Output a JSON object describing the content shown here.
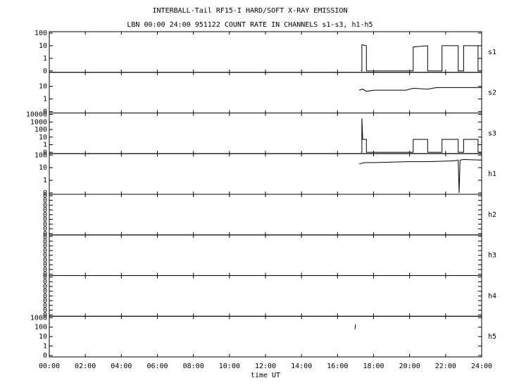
{
  "chart_data": {
    "type": "line",
    "title": "INTERBALL-Tail RF15-I HARD/SOFT X-RAY EMISSION",
    "subtitle": "LBN 00:00 24:00 951122  COUNT RATE IN CHANNELS s1-s3, h1-h5",
    "x_label": "time UT",
    "xlim": [
      0,
      24
    ],
    "xticks": [
      {
        "value": 0,
        "label": "00:00"
      },
      {
        "value": 2,
        "label": "02:00"
      },
      {
        "value": 4,
        "label": "04:00"
      },
      {
        "value": 6,
        "label": "06:00"
      },
      {
        "value": 8,
        "label": "08:00"
      },
      {
        "value": 10,
        "label": "10:00"
      },
      {
        "value": 12,
        "label": "12:00"
      },
      {
        "value": 14,
        "label": "14:00"
      },
      {
        "value": 16,
        "label": "16:00"
      },
      {
        "value": 18,
        "label": "18:00"
      },
      {
        "value": 20,
        "label": "20:00"
      },
      {
        "value": 22,
        "label": "22:00"
      },
      {
        "value": 24,
        "label": "24:00"
      }
    ],
    "color": "#000000",
    "panels": [
      {
        "label": "s1",
        "yscale": "log",
        "ylim": [
          0,
          100
        ],
        "yticks": [
          0,
          1,
          10,
          100
        ],
        "x": [
          17.3,
          17.35,
          17.35,
          17.6,
          17.6,
          20.2,
          20.2,
          21,
          21,
          21.8,
          21.8,
          22.7,
          22.7,
          23,
          23,
          23.8,
          23.8,
          24
        ],
        "values": [
          0,
          0,
          12,
          10,
          0,
          0,
          8,
          10,
          0,
          0,
          10,
          10,
          0,
          0,
          10,
          10,
          0,
          0
        ]
      },
      {
        "label": "s2",
        "yscale": "log",
        "ylim": [
          0,
          100
        ],
        "yticks": [
          0,
          1,
          10
        ],
        "x": [
          17.2,
          17.4,
          17.6,
          18,
          19,
          19.8,
          20.2,
          21,
          21.5,
          22.5,
          23.5,
          24
        ],
        "values": [
          5,
          6,
          4,
          5,
          5,
          5,
          7,
          6,
          8,
          8,
          8,
          8
        ]
      },
      {
        "label": "s3",
        "yscale": "log",
        "ylim": [
          0,
          10000
        ],
        "yticks": [
          0,
          1,
          10,
          100,
          1000,
          10000
        ],
        "x": [
          17.3,
          17.35,
          17.35,
          17.4,
          17.4,
          17.6,
          17.6,
          20.2,
          20.2,
          21,
          21,
          21.8,
          21.8,
          22.7,
          22.7,
          23,
          23,
          23.8,
          23.8,
          24
        ],
        "values": [
          0,
          0,
          3000,
          5,
          5,
          5,
          0,
          0,
          5,
          5,
          0,
          0,
          5,
          5,
          0,
          0,
          5,
          5,
          0,
          0
        ]
      },
      {
        "label": "h1",
        "yscale": "log",
        "ylim": [
          0,
          100
        ],
        "yticks": [
          0,
          1,
          10,
          100
        ],
        "x": [
          17.2,
          17.5,
          18,
          19,
          20,
          21,
          22,
          22.5,
          22.7,
          22.75,
          22.8,
          23,
          24
        ],
        "values": [
          20,
          25,
          25,
          28,
          30,
          30,
          33,
          35,
          40,
          0,
          40,
          45,
          40
        ]
      },
      {
        "label": "h2",
        "yscale": "linear",
        "ylim": [
          0,
          0.4
        ],
        "yticks": [
          0,
          0.05,
          0.1,
          0.15,
          0.2,
          0.25,
          0.3,
          0.35,
          0.4
        ],
        "x": [],
        "values": []
      },
      {
        "label": "h3",
        "yscale": "linear",
        "ylim": [
          0,
          0.4
        ],
        "yticks": [
          0,
          0.05,
          0.1,
          0.15,
          0.2,
          0.25,
          0.3,
          0.35,
          0.4
        ],
        "x": [],
        "values": []
      },
      {
        "label": "h4",
        "yscale": "linear",
        "ylim": [
          0,
          0.4
        ],
        "yticks": [
          0,
          0.05,
          0.1,
          0.15,
          0.2,
          0.25,
          0.3,
          0.35,
          0.4
        ],
        "x": [],
        "values": []
      },
      {
        "label": "h5",
        "yscale": "log",
        "ylim": [
          0,
          1000
        ],
        "yticks": [
          0,
          1,
          10,
          100,
          1000
        ],
        "x": [
          16.97,
          17.0
        ],
        "values": [
          60,
          200
        ]
      }
    ]
  }
}
